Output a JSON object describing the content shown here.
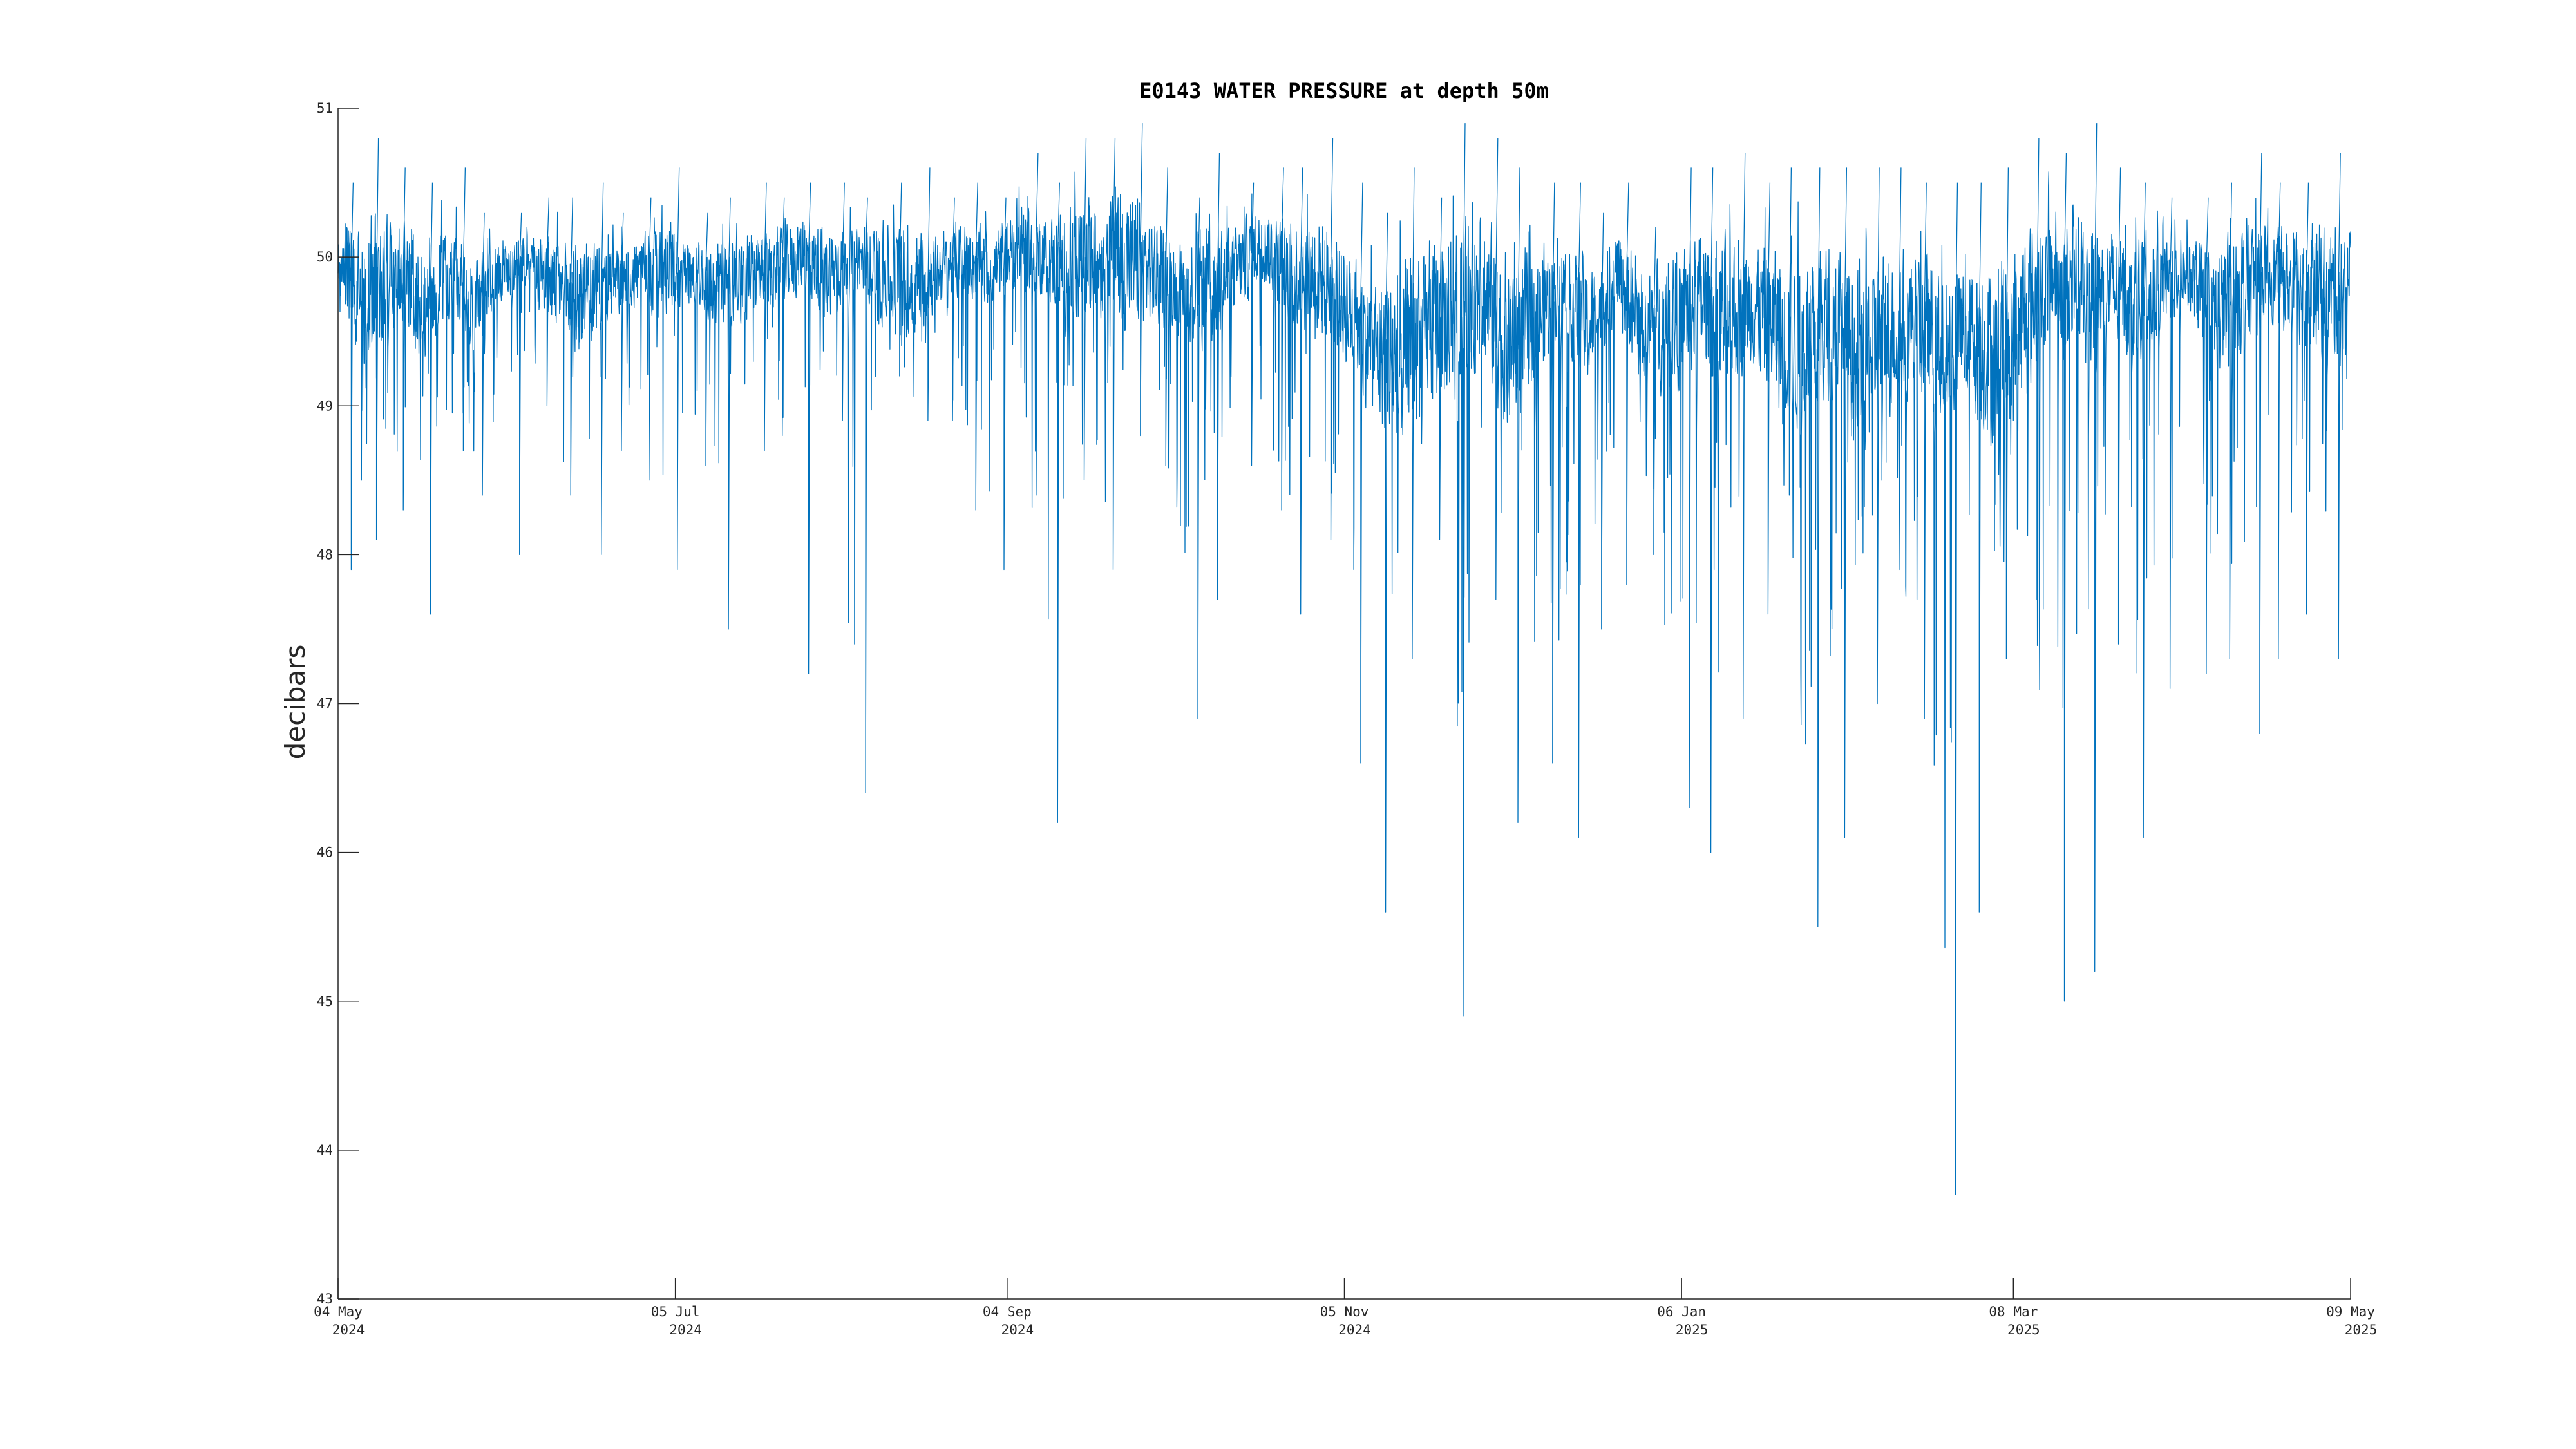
{
  "chart_data": {
    "type": "line",
    "title": "E0143 WATER PRESSURE at depth 50m",
    "xlabel": "",
    "ylabel": "decibars",
    "xlim": [
      "2024-05-04",
      "2025-05-09"
    ],
    "ylim": [
      43,
      51
    ],
    "grid": false,
    "legend": "none",
    "line_color": "#0072BD",
    "axis_color": "#262626",
    "yticks": [
      "43",
      "44",
      "45",
      "46",
      "47",
      "48",
      "49",
      "50",
      "51"
    ],
    "xticks": [
      {
        "date": "2024-05-04",
        "line1": "04 May",
        "line2": "2024"
      },
      {
        "date": "2024-07-05",
        "line1": "05 Jul",
        "line2": "2024"
      },
      {
        "date": "2024-09-04",
        "line1": "04 Sep",
        "line2": "2024"
      },
      {
        "date": "2024-11-05",
        "line1": "05 Nov",
        "line2": "2024"
      },
      {
        "date": "2025-01-06",
        "line1": "06 Jan",
        "line2": "2025"
      },
      {
        "date": "2025-03-08",
        "line1": "08 Mar",
        "line2": "2025"
      },
      {
        "date": "2025-05-09",
        "line1": "09 May",
        "line2": "2025"
      }
    ],
    "series": [
      {
        "name": "",
        "x": [
          "2024-05-04",
          "2024-05-09",
          "2024-05-14",
          "2024-05-19",
          "2024-05-24",
          "2024-05-29",
          "2024-06-03",
          "2024-06-08",
          "2024-06-13",
          "2024-06-18",
          "2024-06-23",
          "2024-06-28",
          "2024-07-03",
          "2024-07-08",
          "2024-07-13",
          "2024-07-18",
          "2024-07-23",
          "2024-07-28",
          "2024-08-02",
          "2024-08-07",
          "2024-08-12",
          "2024-08-17",
          "2024-08-22",
          "2024-08-27",
          "2024-09-01",
          "2024-09-06",
          "2024-09-11",
          "2024-09-16",
          "2024-09-21",
          "2024-09-26",
          "2024-10-01",
          "2024-10-06",
          "2024-10-11",
          "2024-10-16",
          "2024-10-21",
          "2024-10-26",
          "2024-10-31",
          "2024-11-05",
          "2024-11-10",
          "2024-11-15",
          "2024-11-20",
          "2024-11-25",
          "2024-11-30",
          "2024-12-05",
          "2024-12-10",
          "2024-12-15",
          "2024-12-20",
          "2024-12-25",
          "2024-12-30",
          "2025-01-04",
          "2025-01-09",
          "2025-01-14",
          "2025-01-19",
          "2025-01-24",
          "2025-01-29",
          "2025-02-03",
          "2025-02-08",
          "2025-02-13",
          "2025-02-18",
          "2025-02-23",
          "2025-02-28",
          "2025-03-05",
          "2025-03-10",
          "2025-03-15",
          "2025-03-20",
          "2025-03-25",
          "2025-03-30",
          "2025-04-04",
          "2025-04-09",
          "2025-04-14",
          "2025-04-19",
          "2025-04-24",
          "2025-04-29",
          "2025-05-04",
          "2025-05-09"
        ],
        "mean": [
          49.9,
          49.8,
          49.9,
          49.7,
          49.9,
          49.7,
          49.9,
          50.0,
          49.8,
          49.7,
          49.8,
          49.9,
          49.9,
          49.9,
          49.8,
          49.9,
          49.9,
          50.0,
          49.9,
          50.0,
          49.9,
          49.8,
          49.9,
          50.0,
          49.9,
          50.1,
          50.0,
          49.9,
          50.0,
          50.0,
          49.9,
          49.8,
          49.8,
          49.9,
          50.1,
          49.9,
          49.9,
          49.7,
          49.4,
          49.3,
          49.5,
          49.6,
          49.8,
          49.4,
          49.6,
          49.8,
          49.5,
          49.9,
          49.5,
          49.6,
          49.7,
          49.6,
          49.7,
          49.5,
          49.4,
          49.6,
          49.3,
          49.5,
          49.6,
          49.4,
          49.5,
          49.3,
          49.6,
          49.9,
          49.7,
          49.8,
          49.7,
          49.8,
          49.9,
          49.6,
          49.8,
          49.9,
          49.8,
          49.8,
          49.7
        ],
        "max": [
          50.5,
          50.8,
          50.6,
          50.5,
          50.6,
          50.3,
          50.3,
          50.4,
          50.4,
          50.5,
          50.3,
          50.4,
          50.6,
          50.3,
          50.4,
          50.5,
          50.4,
          50.5,
          50.5,
          50.4,
          50.5,
          50.6,
          50.4,
          50.5,
          50.4,
          50.7,
          50.5,
          50.8,
          50.8,
          50.9,
          50.6,
          50.4,
          50.7,
          50.5,
          50.6,
          50.6,
          50.8,
          50.5,
          50.3,
          50.6,
          50.4,
          50.9,
          50.8,
          50.6,
          50.5,
          50.5,
          50.3,
          50.5,
          50.2,
          50.6,
          50.6,
          50.7,
          50.5,
          50.6,
          50.6,
          50.6,
          50.6,
          50.6,
          50.5,
          50.5,
          50.5,
          50.6,
          50.8,
          50.7,
          50.9,
          50.6,
          50.5,
          50.4,
          50.4,
          50.5,
          50.7,
          50.5,
          50.5,
          50.7,
          50.6
        ],
        "min": [
          47.9,
          48.1,
          48.3,
          47.6,
          48.7,
          48.4,
          48.0,
          49.0,
          48.4,
          48.0,
          48.7,
          48.5,
          47.9,
          48.6,
          47.5,
          48.7,
          48.8,
          47.2,
          48.9,
          46.4,
          49.2,
          48.9,
          48.9,
          48.3,
          47.9,
          48.4,
          46.2,
          48.5,
          47.9,
          48.8,
          48.6,
          46.9,
          47.7,
          48.6,
          48.3,
          47.6,
          48.1,
          46.6,
          45.6,
          47.3,
          48.1,
          44.9,
          47.7,
          46.2,
          46.6,
          46.1,
          47.5,
          47.8,
          48.0,
          46.3,
          46.0,
          46.9,
          47.6,
          48.4,
          45.5,
          46.1,
          47.0,
          47.9,
          46.9,
          43.7,
          45.6,
          47.3,
          47.7,
          45.0,
          45.2,
          47.4,
          46.1,
          47.1,
          47.2,
          47.3,
          46.8,
          47.3,
          47.6,
          47.3,
          48.6
        ]
      }
    ]
  }
}
